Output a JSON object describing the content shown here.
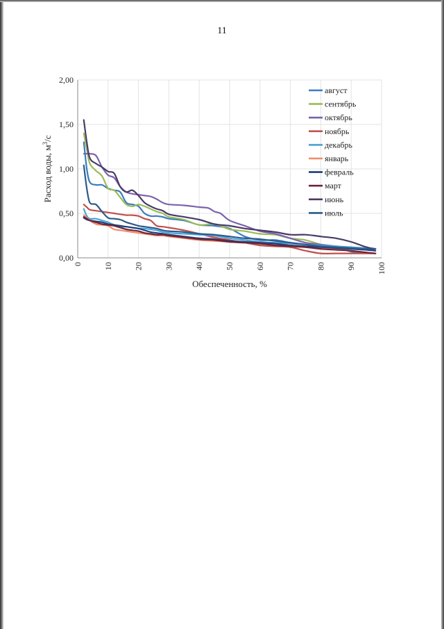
{
  "page": {
    "number": "11"
  },
  "chart_data": {
    "type": "line",
    "xlabel": "Обеспеченность, %",
    "ylabel_prefix": "Расход воды, м",
    "ylabel_sup": "3",
    "ylabel_suffix": "/с",
    "xlim": [
      0,
      100
    ],
    "ylim": [
      0,
      2
    ],
    "x_ticks": [
      "0",
      "10",
      "20",
      "30",
      "40",
      "50",
      "60",
      "70",
      "80",
      "90",
      "100"
    ],
    "y_ticks": [
      "0,00",
      "0,50",
      "1,00",
      "1,50",
      "2,00"
    ],
    "grid": true,
    "legend_position": "top-right",
    "series": [
      {
        "name": "август",
        "color": "#3a7cc0",
        "x": [
          2,
          3,
          4,
          6,
          8,
          10,
          12,
          14,
          16,
          18,
          20,
          22,
          24,
          26,
          28,
          30,
          35,
          40,
          45,
          50,
          55,
          60,
          65,
          70,
          75,
          80,
          85,
          90,
          95,
          98
        ],
        "y": [
          1.3,
          1.0,
          0.85,
          0.82,
          0.82,
          0.78,
          0.76,
          0.74,
          0.62,
          0.6,
          0.58,
          0.5,
          0.47,
          0.47,
          0.46,
          0.44,
          0.42,
          0.37,
          0.36,
          0.33,
          0.24,
          0.2,
          0.2,
          0.17,
          0.15,
          0.13,
          0.12,
          0.07,
          0.06,
          0.05
        ]
      },
      {
        "name": "сентябрь",
        "color": "#9bbb59",
        "x": [
          2,
          3,
          4,
          6,
          8,
          10,
          12,
          14,
          16,
          18,
          20,
          22,
          24,
          26,
          28,
          30,
          35,
          40,
          45,
          50,
          55,
          60,
          65,
          70,
          75,
          80,
          85,
          90,
          95,
          98
        ],
        "y": [
          1.4,
          1.22,
          1.06,
          0.98,
          0.92,
          0.78,
          0.76,
          0.68,
          0.6,
          0.58,
          0.6,
          0.58,
          0.55,
          0.52,
          0.5,
          0.46,
          0.43,
          0.37,
          0.38,
          0.32,
          0.3,
          0.27,
          0.26,
          0.22,
          0.2,
          0.15,
          0.13,
          0.11,
          0.1,
          0.1
        ]
      },
      {
        "name": "октябрь",
        "color": "#7b62ad",
        "x": [
          2,
          3,
          4,
          6,
          8,
          10,
          12,
          14,
          16,
          18,
          20,
          22,
          24,
          26,
          28,
          30,
          35,
          40,
          43,
          45,
          47,
          50,
          55,
          60,
          65,
          70,
          75,
          80,
          85,
          90,
          95,
          98
        ],
        "y": [
          1.17,
          1.17,
          1.17,
          1.15,
          1.02,
          0.93,
          0.9,
          0.8,
          0.74,
          0.72,
          0.71,
          0.7,
          0.69,
          0.66,
          0.62,
          0.6,
          0.59,
          0.57,
          0.56,
          0.52,
          0.5,
          0.42,
          0.36,
          0.3,
          0.27,
          0.22,
          0.17,
          0.15,
          0.13,
          0.11,
          0.11,
          0.1
        ]
      },
      {
        "name": "ноябрь",
        "color": "#c0504d",
        "x": [
          2,
          3,
          4,
          6,
          8,
          10,
          12,
          14,
          16,
          18,
          20,
          22,
          24,
          26,
          28,
          30,
          35,
          40,
          45,
          50,
          55,
          60,
          65,
          70,
          75,
          80,
          85,
          90,
          95,
          98
        ],
        "y": [
          0.6,
          0.57,
          0.54,
          0.53,
          0.52,
          0.51,
          0.5,
          0.49,
          0.48,
          0.48,
          0.47,
          0.44,
          0.42,
          0.36,
          0.35,
          0.34,
          0.31,
          0.27,
          0.23,
          0.2,
          0.17,
          0.14,
          0.13,
          0.12,
          0.08,
          0.05,
          0.05,
          0.05,
          0.05,
          0.05
        ]
      },
      {
        "name": "декабрь",
        "color": "#4aa3d6",
        "x": [
          2,
          3,
          4,
          6,
          8,
          10,
          12,
          14,
          16,
          18,
          20,
          22,
          24,
          26,
          28,
          30,
          35,
          40,
          45,
          50,
          55,
          60,
          65,
          70,
          75,
          80,
          85,
          90,
          95,
          98
        ],
        "y": [
          0.55,
          0.47,
          0.44,
          0.44,
          0.42,
          0.4,
          0.37,
          0.35,
          0.35,
          0.34,
          0.33,
          0.33,
          0.32,
          0.31,
          0.29,
          0.28,
          0.27,
          0.26,
          0.25,
          0.22,
          0.2,
          0.18,
          0.17,
          0.16,
          0.15,
          0.14,
          0.13,
          0.12,
          0.11,
          0.1
        ]
      },
      {
        "name": "январь",
        "color": "#f08c6a",
        "x": [
          2,
          3,
          4,
          6,
          8,
          10,
          12,
          14,
          16,
          18,
          20,
          22,
          24,
          26,
          28,
          30,
          35,
          40,
          45,
          50,
          55,
          60,
          65,
          70,
          75,
          80,
          85,
          90,
          95,
          98
        ],
        "y": [
          0.48,
          0.45,
          0.42,
          0.38,
          0.37,
          0.36,
          0.32,
          0.31,
          0.3,
          0.29,
          0.28,
          0.27,
          0.26,
          0.25,
          0.25,
          0.24,
          0.22,
          0.2,
          0.19,
          0.18,
          0.17,
          0.16,
          0.15,
          0.13,
          0.12,
          0.11,
          0.1,
          0.08,
          0.06,
          0.05
        ]
      },
      {
        "name": "февраль",
        "color": "#1f3d7a",
        "x": [
          2,
          3,
          4,
          6,
          8,
          10,
          12,
          14,
          16,
          18,
          20,
          22,
          24,
          26,
          28,
          30,
          35,
          40,
          45,
          50,
          55,
          60,
          65,
          70,
          75,
          80,
          85,
          90,
          95,
          98
        ],
        "y": [
          0.45,
          0.43,
          0.42,
          0.41,
          0.4,
          0.38,
          0.37,
          0.36,
          0.35,
          0.34,
          0.33,
          0.31,
          0.29,
          0.28,
          0.27,
          0.26,
          0.24,
          0.22,
          0.21,
          0.19,
          0.18,
          0.17,
          0.16,
          0.14,
          0.13,
          0.12,
          0.11,
          0.1,
          0.09,
          0.08
        ]
      },
      {
        "name": "март",
        "color": "#6e2438",
        "x": [
          2,
          3,
          4,
          6,
          8,
          10,
          12,
          14,
          16,
          18,
          20,
          22,
          24,
          26,
          28,
          30,
          35,
          40,
          45,
          50,
          55,
          60,
          65,
          70,
          75,
          80,
          85,
          90,
          95,
          98
        ],
        "y": [
          0.46,
          0.44,
          0.42,
          0.4,
          0.38,
          0.37,
          0.36,
          0.34,
          0.32,
          0.31,
          0.3,
          0.28,
          0.27,
          0.26,
          0.26,
          0.25,
          0.23,
          0.21,
          0.2,
          0.18,
          0.17,
          0.16,
          0.14,
          0.13,
          0.12,
          0.1,
          0.09,
          0.08,
          0.06,
          0.05
        ]
      },
      {
        "name": "июнь",
        "color": "#4a3a66",
        "x": [
          2,
          3,
          4,
          6,
          8,
          10,
          12,
          14,
          16,
          18,
          20,
          22,
          24,
          26,
          28,
          30,
          35,
          40,
          45,
          50,
          55,
          60,
          65,
          70,
          75,
          80,
          85,
          90,
          95,
          98
        ],
        "y": [
          1.55,
          1.3,
          1.12,
          1.06,
          1.02,
          0.97,
          0.95,
          0.8,
          0.74,
          0.76,
          0.7,
          0.62,
          0.58,
          0.55,
          0.53,
          0.49,
          0.46,
          0.43,
          0.38,
          0.36,
          0.33,
          0.31,
          0.29,
          0.26,
          0.26,
          0.24,
          0.22,
          0.18,
          0.12,
          0.1
        ]
      },
      {
        "name": "июль",
        "color": "#2c5a8a",
        "x": [
          2,
          3,
          4,
          6,
          8,
          10,
          12,
          14,
          16,
          18,
          20,
          22,
          24,
          26,
          28,
          30,
          35,
          40,
          45,
          50,
          55,
          60,
          65,
          70,
          75,
          80,
          85,
          90,
          95,
          98
        ],
        "y": [
          1.04,
          0.78,
          0.62,
          0.6,
          0.52,
          0.45,
          0.44,
          0.43,
          0.4,
          0.38,
          0.36,
          0.35,
          0.34,
          0.33,
          0.31,
          0.3,
          0.29,
          0.27,
          0.26,
          0.24,
          0.22,
          0.21,
          0.19,
          0.17,
          0.15,
          0.13,
          0.12,
          0.11,
          0.1,
          0.1
        ]
      }
    ]
  }
}
